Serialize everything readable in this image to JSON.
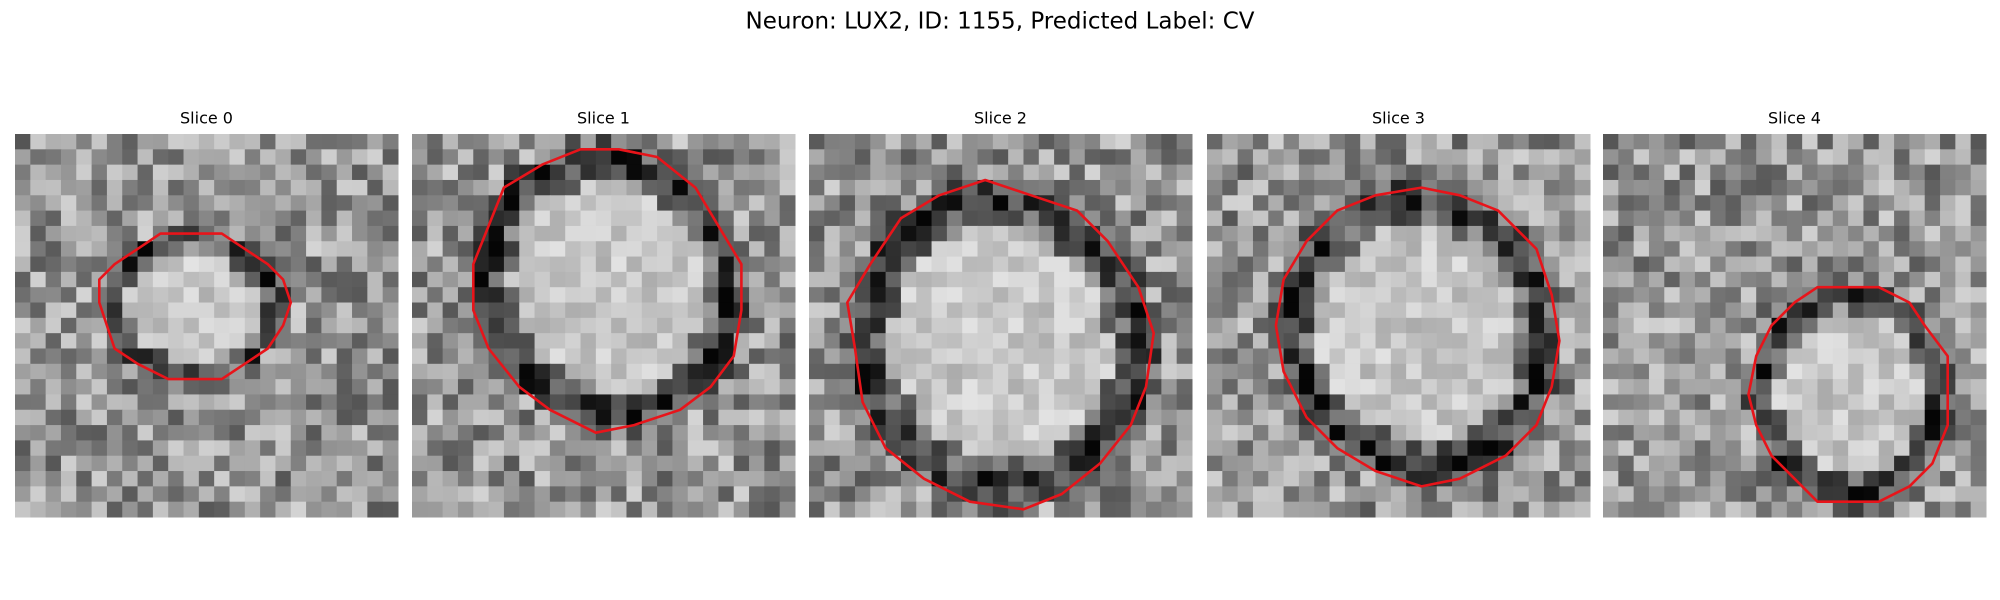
{
  "title": "Neuron: LUX2, ID: 1155, Predicted Label: CV",
  "panels": [
    {
      "title": "Slice 0"
    },
    {
      "title": "Slice 1"
    },
    {
      "title": "Slice 2"
    },
    {
      "title": "Slice 3"
    },
    {
      "title": "Slice 4"
    }
  ]
}
